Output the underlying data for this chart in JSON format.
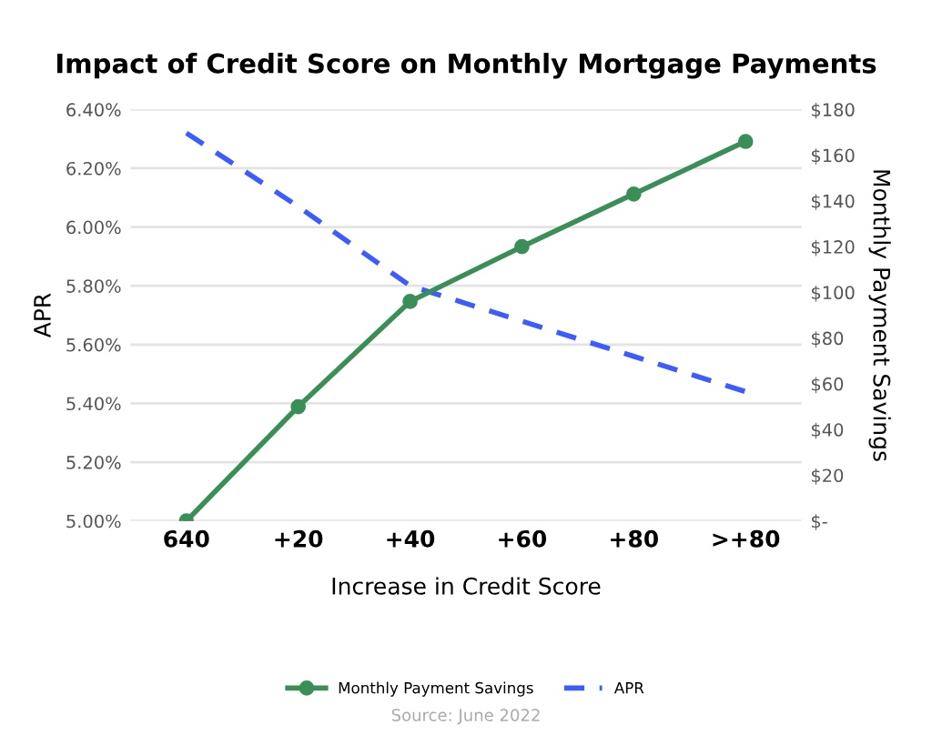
{
  "chart_data": {
    "type": "line",
    "title": "Impact of Credit Score on Monthly Mortgage Payments",
    "xlabel": "Increase in Credit Score",
    "ylabel": "APR",
    "y2label": "Monthly Payment Savings",
    "categories": [
      "640",
      "+20",
      "+40",
      "+60",
      "+80",
      ">+80"
    ],
    "series": [
      {
        "name": "Monthly Payment Savings",
        "color": "#3a8f57",
        "values": [
          0,
          50,
          96,
          120,
          143,
          166
        ],
        "axis": "y2",
        "marker": "circle",
        "line_style": "solid"
      },
      {
        "name": "APR",
        "color": "#3d5cff",
        "values": [
          6.32,
          6.07,
          5.8,
          5.68,
          5.56,
          5.44
        ],
        "axis": "y",
        "marker": "none",
        "line_style": "dashed"
      }
    ],
    "ylim": [
      5.0,
      6.4
    ],
    "yticks": [
      {
        "value": 5.0,
        "label": "5.00%"
      },
      {
        "value": 5.2,
        "label": "5.20%"
      },
      {
        "value": 5.4,
        "label": "5.40%"
      },
      {
        "value": 5.6,
        "label": "5.60%"
      },
      {
        "value": 5.8,
        "label": "5.80%"
      },
      {
        "value": 6.0,
        "label": "6.00%"
      },
      {
        "value": 6.2,
        "label": "6.20%"
      },
      {
        "value": 6.4,
        "label": "6.40%"
      }
    ],
    "y2lim": [
      0,
      180
    ],
    "y2ticks": [
      {
        "value": 0,
        "label": "$-"
      },
      {
        "value": 20,
        "label": "$20"
      },
      {
        "value": 40,
        "label": "$40"
      },
      {
        "value": 60,
        "label": "$60"
      },
      {
        "value": 80,
        "label": "$80"
      },
      {
        "value": 100,
        "label": "$100"
      },
      {
        "value": 120,
        "label": "$120"
      },
      {
        "value": 140,
        "label": "$140"
      },
      {
        "value": 160,
        "label": "$160"
      },
      {
        "value": 180,
        "label": "$180"
      }
    ],
    "grid": "y",
    "legend": "bottom",
    "annotations": [
      "Source: June 2022"
    ]
  }
}
